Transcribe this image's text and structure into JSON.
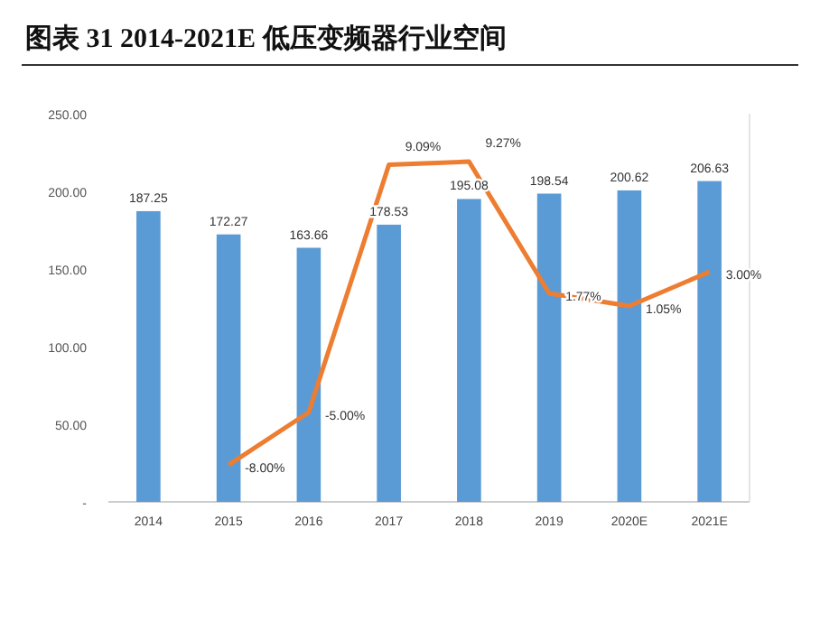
{
  "chart_data": {
    "type": "bar",
    "title": "图表 31 2014-2021E 低压变频器行业空间",
    "categories": [
      "2014",
      "2015",
      "2016",
      "2017",
      "2018",
      "2019",
      "2020E",
      "2021E"
    ],
    "series": [
      {
        "color": "#5b9bd5",
        "values": [
          187.25,
          172.27,
          163.66,
          178.53,
          195.08,
          198.54,
          200.62,
          206.63
        ]
      },
      {
        "type": "line",
        "axis": "y2",
        "color": "#ed7d31",
        "values": [
          null,
          -8.0,
          -5.0,
          9.09,
          9.27,
          1.77,
          1.05,
          3.0
        ],
        "value_labels": [
          null,
          "-8.00%",
          "-5.00%",
          "9.09%",
          "9.27%",
          "1.77%",
          "1.05%",
          "3.00%"
        ]
      }
    ],
    "data_labels": true,
    "ylim": [
      0,
      250
    ],
    "yticks": [
      {
        "value": 0,
        "label": "-"
      },
      {
        "value": 50,
        "label": "50.00"
      },
      {
        "value": 100,
        "label": "100.00"
      },
      {
        "value": 150,
        "label": "150.00"
      },
      {
        "value": 200,
        "label": "200.00"
      },
      {
        "value": 250,
        "label": "250.00"
      }
    ],
    "y2lim": [
      -10.1,
      12.0
    ],
    "grid": false
  }
}
